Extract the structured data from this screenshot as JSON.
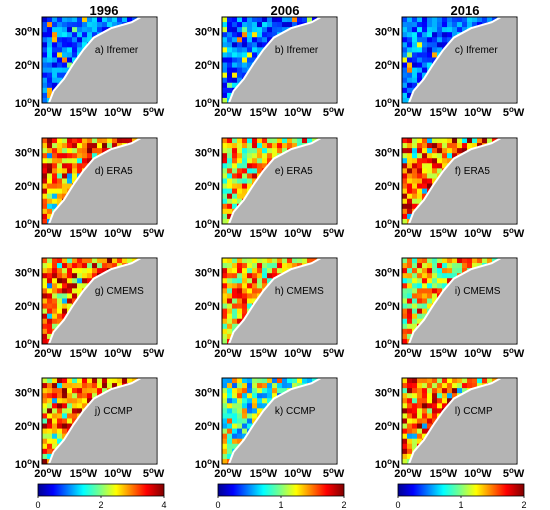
{
  "chart_data": {
    "type": "heatmap",
    "columns": [
      "1996",
      "2006",
      "2016"
    ],
    "lat_ticks": [
      "10",
      "20",
      "30"
    ],
    "lat_suffix": "N",
    "lon_ticks": [
      "20",
      "15",
      "10",
      "5"
    ],
    "lon_suffix": "W",
    "degree_symbol": "o",
    "panels": [
      {
        "label": "a) Ifremer",
        "scale": "blue"
      },
      {
        "label": "b) Ifremer",
        "scale": "blue"
      },
      {
        "label": "c) Ifremer",
        "scale": "blue"
      },
      {
        "label": "d) ERA5",
        "scale": "hot"
      },
      {
        "label": "e) ERA5",
        "scale": "warm"
      },
      {
        "label": "f) ERA5",
        "scale": "hot"
      },
      {
        "label": "g) CMEMS",
        "scale": "hot"
      },
      {
        "label": "h) CMEMS",
        "scale": "warm"
      },
      {
        "label": "i) CMEMS",
        "scale": "warm"
      },
      {
        "label": "j) CCMP",
        "scale": "hot"
      },
      {
        "label": "k) CCMP",
        "scale": "mixed"
      },
      {
        "label": "l) CCMP",
        "scale": "hot"
      }
    ],
    "colorbars": [
      {
        "min": 0,
        "max": 4,
        "ticks": [
          "0",
          "2",
          "4"
        ]
      },
      {
        "min": 0,
        "max": 2,
        "ticks": [
          "0",
          "1",
          "2"
        ]
      },
      {
        "min": 0,
        "max": 2,
        "ticks": [
          "0",
          "1",
          "2"
        ]
      }
    ],
    "colormap": "jet",
    "land_color": "#b4b4b4"
  }
}
